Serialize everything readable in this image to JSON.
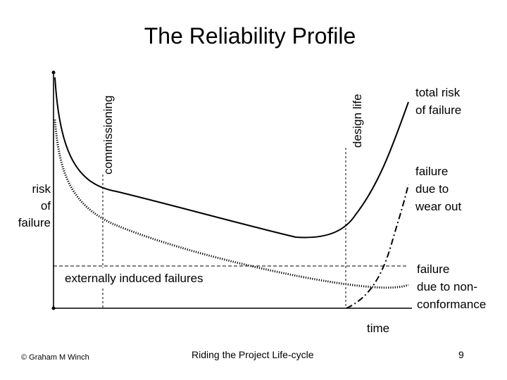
{
  "slide": {
    "title": "The Reliability Profile",
    "footer_left": "© Graham M Winch",
    "footer_center": "Riding the Project Life-cycle",
    "page_number": "9"
  },
  "diagram": {
    "y_axis_label_lines": [
      "risk",
      "of",
      "failure"
    ],
    "x_axis_label": "time",
    "phase_markers": {
      "commissioning": "commissioning",
      "design_life": "design life"
    },
    "curve_labels": {
      "total_risk": [
        "total risk",
        "of failure"
      ],
      "wear_out": [
        "failure",
        "due to",
        "wear out"
      ],
      "non_conformance": [
        "failure",
        "due to non-",
        "conformance"
      ],
      "external": "externally induced failures"
    }
  }
}
